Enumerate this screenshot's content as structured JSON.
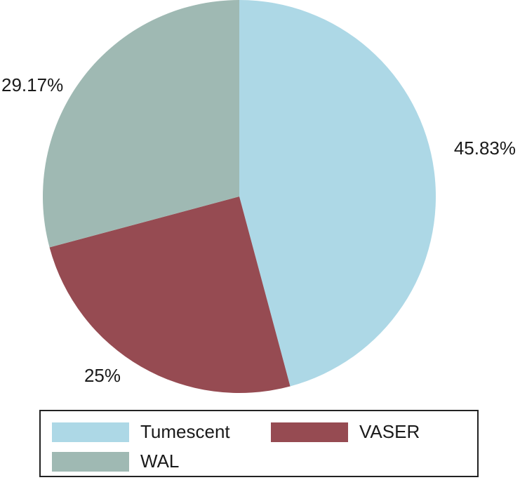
{
  "chart_data": {
    "type": "pie",
    "title": "",
    "slices": [
      {
        "label": "Tumescent",
        "value": 45.83,
        "display": "45.83%",
        "color": "#add8e6"
      },
      {
        "label": "VASER",
        "value": 25,
        "display": "25%",
        "color": "#964b52"
      },
      {
        "label": "WAL",
        "value": 29.17,
        "display": "29.17%",
        "color": "#9fb9b3"
      }
    ],
    "start_angle": "12 o'clock",
    "direction": "clockwise",
    "legend_position": "bottom"
  },
  "legend": {
    "items": [
      {
        "label": "Tumescent",
        "color": "#add8e6"
      },
      {
        "label": "VASER",
        "color": "#964b52"
      },
      {
        "label": "WAL",
        "color": "#9fb9b3"
      }
    ]
  }
}
